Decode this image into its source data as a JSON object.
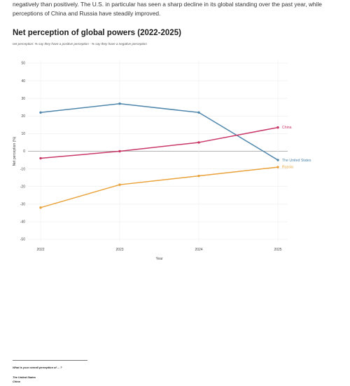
{
  "intro_text": "negatively than positively. The U.S. in particular has seen a sharp decline in its global standing over the past year, while perceptions of China and Russia have steadily improved.",
  "footnote": {
    "question": "What is your overall perception of ... ?",
    "items": [
      "The United States",
      "China"
    ]
  },
  "chart_data": {
    "type": "line",
    "title": "Net perception of global powers (2022-2025)",
    "subtitle": "net perception: % say they have a positive perception - % say they have a negative perception",
    "xlabel": "Year",
    "ylabel": "Net perception (%)",
    "x": [
      "2022",
      "2023",
      "2024",
      "2025"
    ],
    "ylim": [
      -50,
      50
    ],
    "yticks": [
      50,
      40,
      30,
      20,
      10,
      0,
      -10,
      -20,
      -30,
      -40,
      -50
    ],
    "grid": true,
    "series": [
      {
        "name": "The United States",
        "values": [
          22,
          27,
          22,
          -5
        ],
        "color": "#4f86ac"
      },
      {
        "name": "China",
        "values": [
          -4,
          0,
          5,
          13.5
        ],
        "color": "#c93866"
      },
      {
        "name": "Russia",
        "values": [
          -32,
          -19,
          -14,
          -9
        ],
        "color": "#e9a23b"
      }
    ]
  }
}
